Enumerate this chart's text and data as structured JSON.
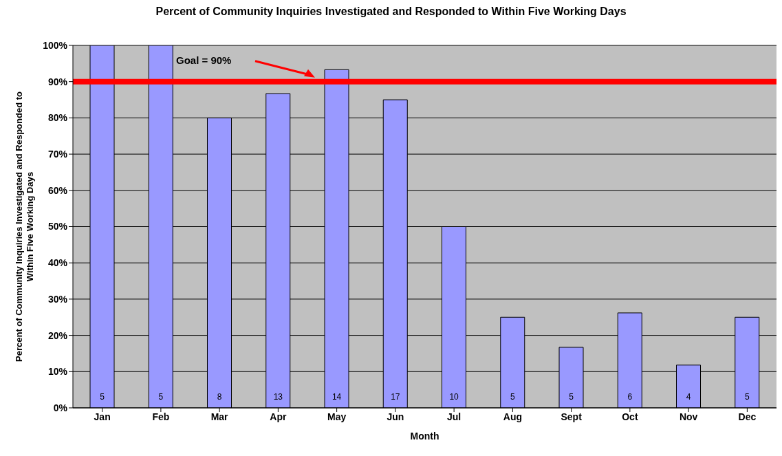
{
  "chart_data": {
    "type": "bar",
    "title": "Percent of Community Inquiries Investigated and Responded to Within Five Working Days",
    "xlabel": "Month",
    "ylabel": "Percent of Community Inquiries Investigated and Responded to Within Five Working Days",
    "categories": [
      "Jan",
      "Feb",
      "Mar",
      "Apr",
      "May",
      "Jun",
      "Jul",
      "Aug",
      "Sept",
      "Oct",
      "Nov",
      "Dec"
    ],
    "values": [
      100,
      100,
      80,
      86.7,
      93.3,
      85,
      50,
      25,
      16.7,
      26.2,
      11.8,
      25
    ],
    "color": "#9999ff",
    "ylim": [
      0,
      100
    ],
    "yticks": [
      {
        "value": 0,
        "label": "0%"
      },
      {
        "value": 10,
        "label": "10%"
      },
      {
        "value": 20,
        "label": "20%"
      },
      {
        "value": 30,
        "label": "30%"
      },
      {
        "value": 40,
        "label": "40%"
      },
      {
        "value": 50,
        "label": "50%"
      },
      {
        "value": 60,
        "label": "60%"
      },
      {
        "value": 70,
        "label": "70%"
      },
      {
        "value": 80,
        "label": "80%"
      },
      {
        "value": 90,
        "label": "90%"
      },
      {
        "value": 100,
        "label": "100%"
      }
    ],
    "grid": "y",
    "legend": false,
    "ref_lines": [
      {
        "axis": "y",
        "value": 90,
        "label": "Goal = 90%",
        "color": "#ff0000"
      }
    ],
    "annotations": [
      "5",
      "5",
      "8",
      "13",
      "14",
      "17",
      "10",
      "5",
      "5",
      "6",
      "4",
      "5"
    ]
  }
}
